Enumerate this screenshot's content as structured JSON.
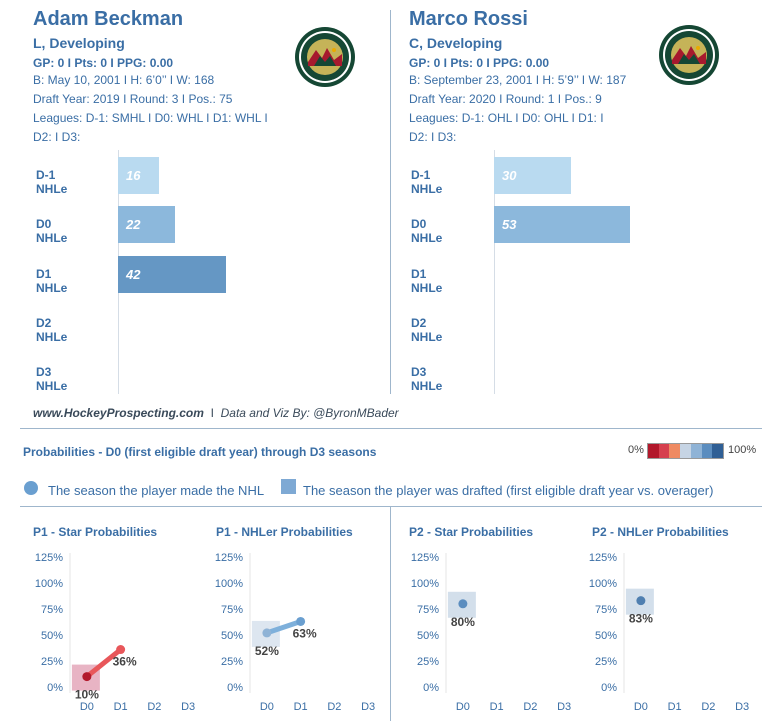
{
  "players": [
    {
      "name": "Adam Beckman",
      "position": "L, Developing",
      "stats": "GP: 0 I Pts: 0 I PPG: 0.00",
      "bio": "B: May 10, 2001 I H: 6’0’’ I W: 168",
      "draft": "Draft Year: 2019 I Round: 3 I Pos.: 75",
      "leagues_1": "Leagues: D-1: SMHL I D0: WHL I D1: WHL I",
      "leagues_2": "D2:  I D3:",
      "logo_icon": "minnesota-wild-logo"
    },
    {
      "name": "Marco Rossi",
      "position": "C, Developing",
      "stats": "GP: 0 I Pts: 0 I PPG: 0.00",
      "bio": "B: September 23, 2001 I H: 5’9’’ I W: 187",
      "draft": "Draft Year: 2020 I Round: 1 I Pos.: 9",
      "leagues_1": "Leagues: D-1: OHL I D0: OHL I D1:  I",
      "leagues_2": "D2:  I D3:",
      "logo_icon": "minnesota-wild-logo"
    }
  ],
  "footer": {
    "site": "www.HockeyProspecting.com",
    "separator": "I",
    "credit": "Data and Viz By: @ByronMBader"
  },
  "probabilities": {
    "title": "Probabilities - D0 (first eligible draft year) through D3 seasons",
    "scale_min": "0%",
    "scale_max": "100%",
    "scale_colors": [
      "#b2182b",
      "#d6404e",
      "#ef8a62",
      "#c6d4e4",
      "#8fb3d6",
      "#5b8dbf",
      "#2f5f95"
    ],
    "legend_dot": "The season the player made the NHL",
    "legend_square": "The season the player was drafted (first eligible draft year vs. overager)"
  },
  "chart_data": [
    {
      "type": "bar",
      "player": "Adam Beckman",
      "categories": [
        "D-1 NHLe",
        "D0 NHLe",
        "D1 NHLe",
        "D2 NHLe",
        "D3 NHLe"
      ],
      "values": [
        16,
        22,
        42,
        null,
        null
      ],
      "colors": [
        "#b9daf0",
        "#8cb8dc",
        "#6597c4",
        null,
        null
      ],
      "xlim": [
        0,
        100
      ]
    },
    {
      "type": "bar",
      "player": "Marco Rossi",
      "categories": [
        "D-1 NHLe",
        "D0 NHLe",
        "D1 NHLe",
        "D2 NHLe",
        "D3 NHLe"
      ],
      "values": [
        30,
        53,
        null,
        null,
        null
      ],
      "colors": [
        "#b9daf0",
        "#8cb8dc",
        null,
        null,
        null
      ],
      "xlim": [
        0,
        100
      ]
    },
    {
      "type": "line",
      "title": "P1 - Star Probabilities",
      "x": [
        "D0",
        "D1",
        "D2",
        "D3"
      ],
      "y": [
        10,
        36,
        null,
        null
      ],
      "labels": [
        "10%",
        "36%",
        "",
        ""
      ],
      "point_colors": [
        "#b2182b",
        "#e8575a"
      ],
      "line_color": "#e8575a",
      "drafted_index": 0,
      "drafted_color": "#e8b4c4",
      "yticks": [
        "0%",
        "25%",
        "50%",
        "75%",
        "100%",
        "125%"
      ],
      "ylim": [
        0,
        125
      ]
    },
    {
      "type": "line",
      "title": "P1 - NHLer Probabilities",
      "x": [
        "D0",
        "D1",
        "D2",
        "D3"
      ],
      "y": [
        52,
        63,
        null,
        null
      ],
      "labels": [
        "52%",
        "63%",
        "",
        ""
      ],
      "point_colors": [
        "#8fb3d6",
        "#6a9fd0"
      ],
      "line_color": "#7eb0db",
      "drafted_index": 0,
      "drafted_color": "#dde6f0",
      "yticks": [
        "0%",
        "25%",
        "50%",
        "75%",
        "100%",
        "125%"
      ],
      "ylim": [
        0,
        125
      ]
    },
    {
      "type": "line",
      "title": "P2 - Star Probabilities",
      "x": [
        "D0",
        "D1",
        "D2",
        "D3"
      ],
      "y": [
        80,
        null,
        null,
        null
      ],
      "labels": [
        "80%",
        "",
        "",
        ""
      ],
      "point_colors": [
        "#5b8dbf"
      ],
      "line_color": "#5b8dbf",
      "drafted_index": 0,
      "drafted_color": "#d3dfeb",
      "yticks": [
        "0%",
        "25%",
        "50%",
        "75%",
        "100%",
        "125%"
      ],
      "ylim": [
        0,
        125
      ]
    },
    {
      "type": "line",
      "title": "P2 - NHLer Probabilities",
      "x": [
        "D0",
        "D1",
        "D2",
        "D3"
      ],
      "y": [
        83,
        null,
        null,
        null
      ],
      "labels": [
        "83%",
        "",
        "",
        ""
      ],
      "point_colors": [
        "#4f7fb0"
      ],
      "line_color": "#4f7fb0",
      "drafted_index": 0,
      "drafted_color": "#d3dfeb",
      "yticks": [
        "0%",
        "25%",
        "50%",
        "75%",
        "100%",
        "125%"
      ],
      "ylim": [
        0,
        125
      ]
    }
  ]
}
